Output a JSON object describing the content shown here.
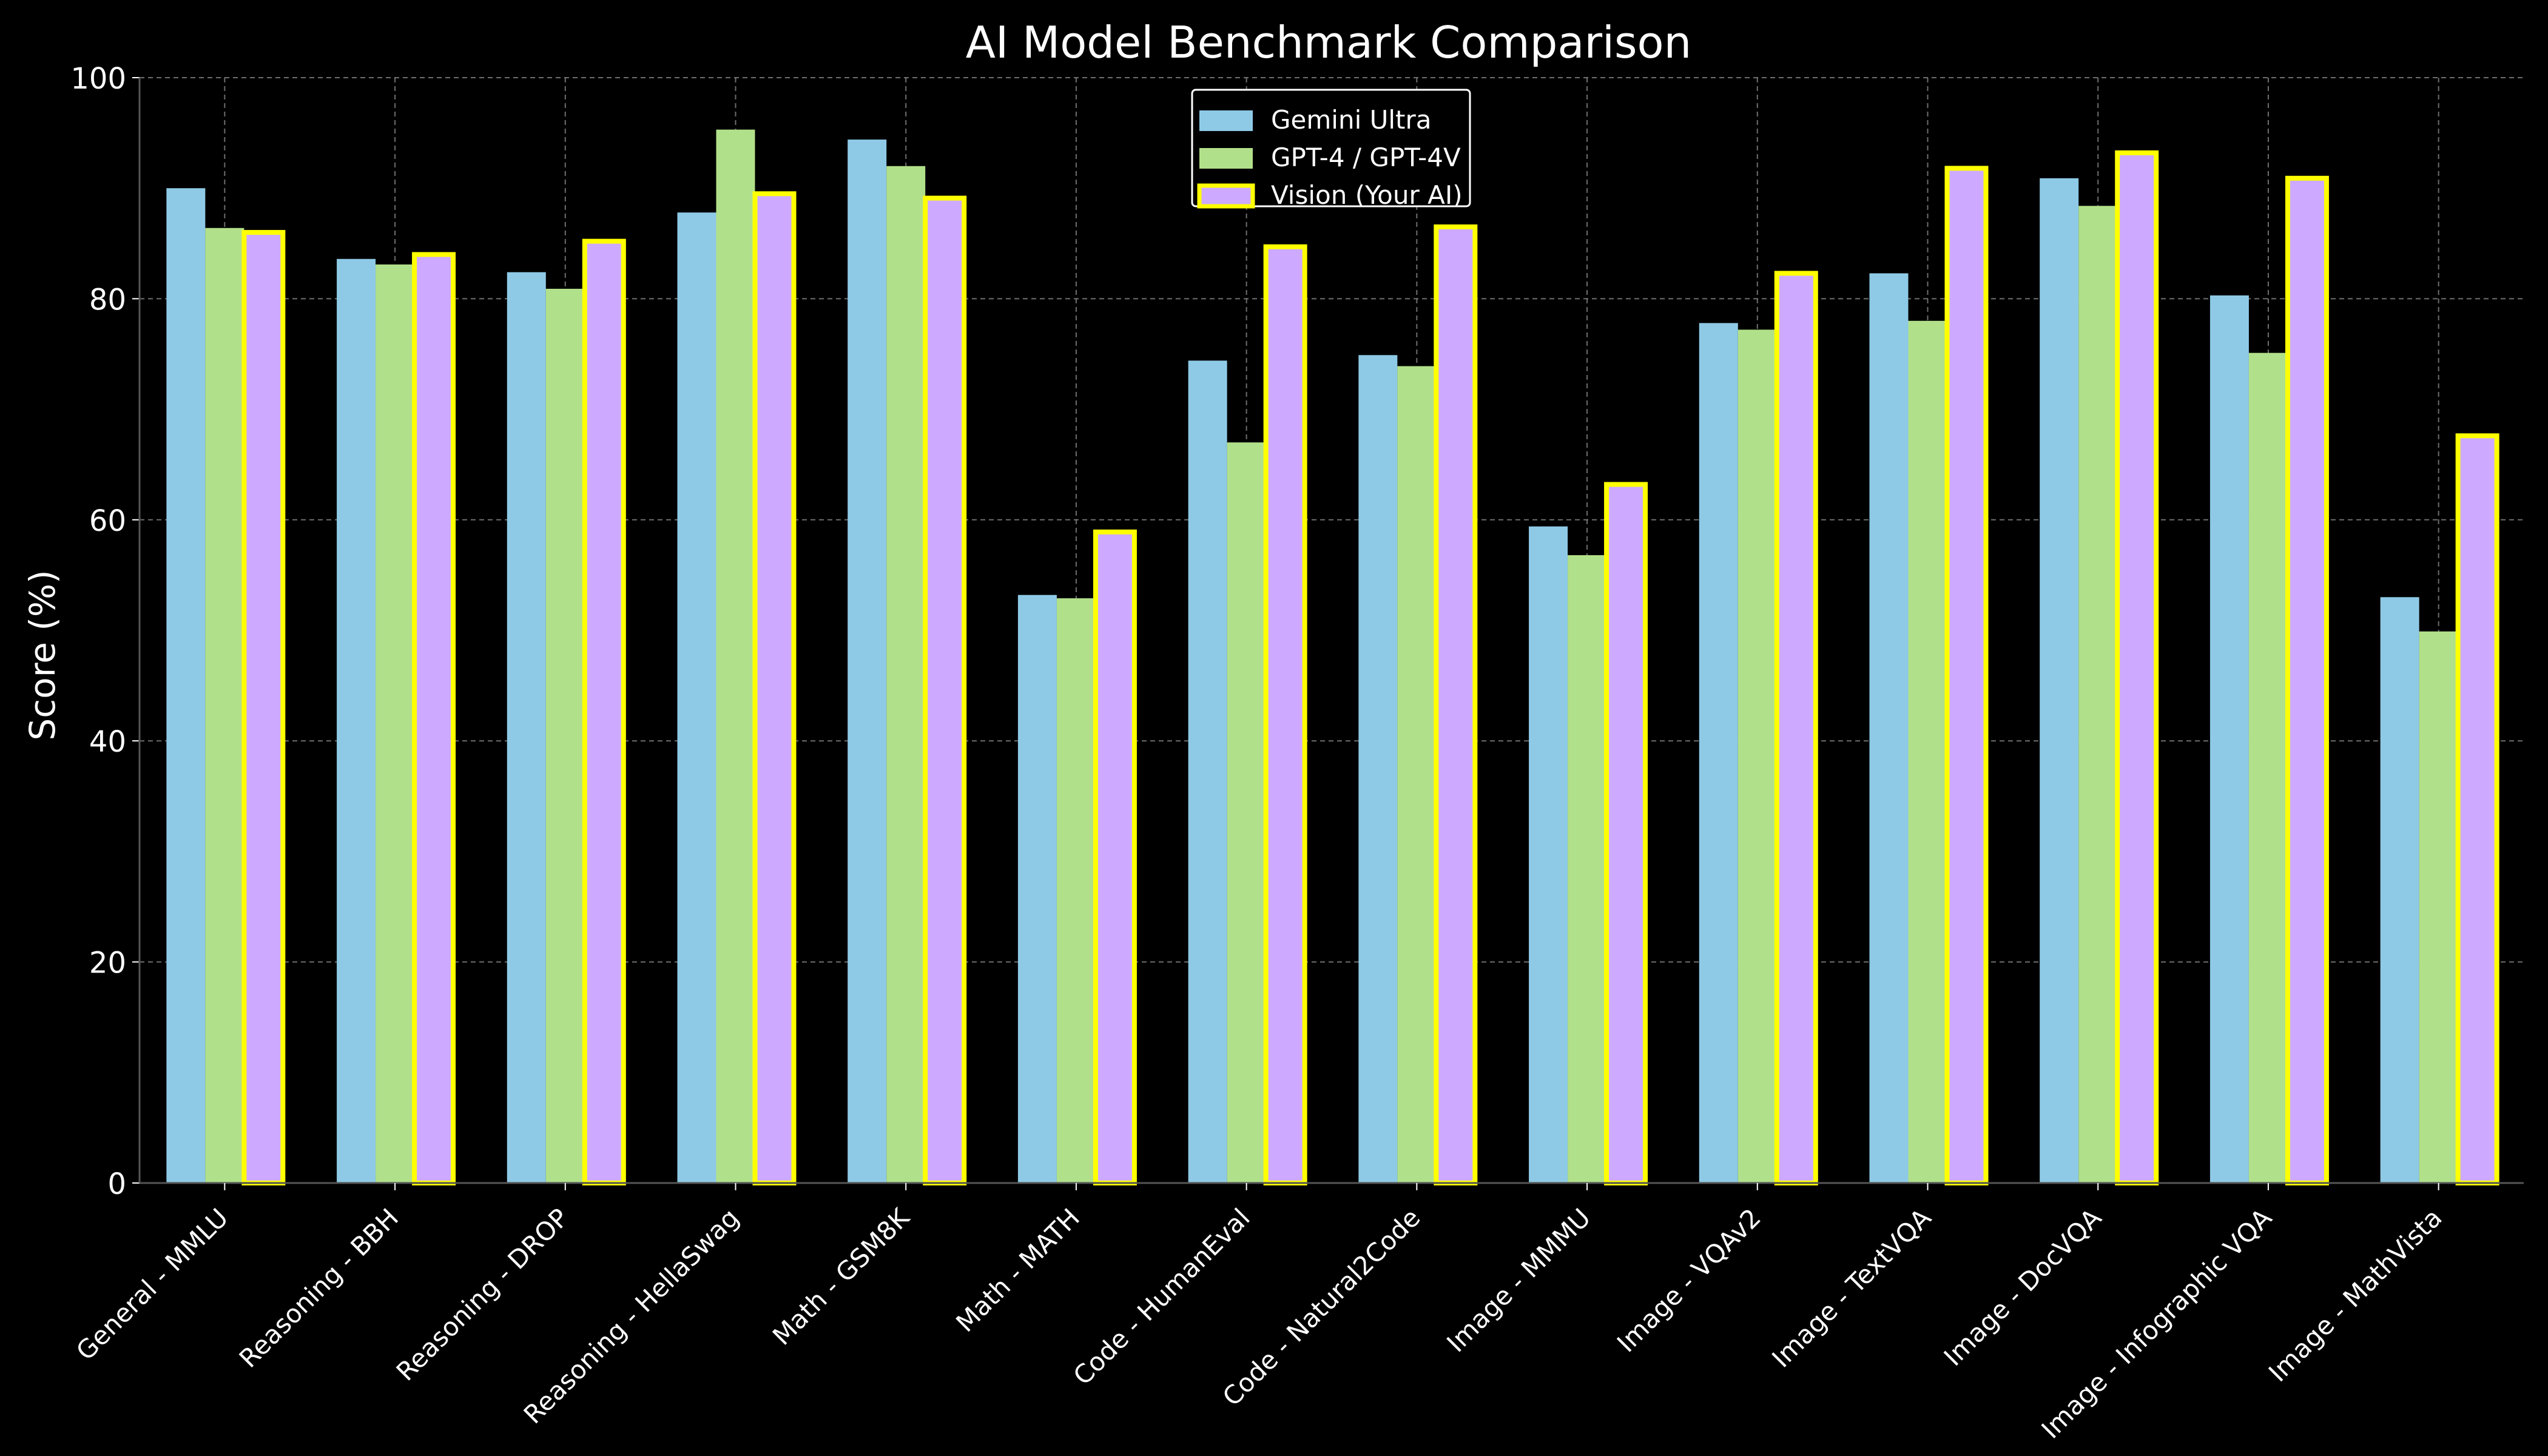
{
  "chart_data": {
    "type": "bar",
    "title": "AI Model Benchmark Comparison",
    "xlabel": "",
    "ylabel": "Score (%)",
    "ylim": [
      0,
      100
    ],
    "yticks": [
      0,
      20,
      40,
      60,
      80,
      100
    ],
    "grid": true,
    "legend_position": "top-center",
    "categories": [
      "General - MMLU",
      "Reasoning - BBH",
      "Reasoning - DROP",
      "Reasoning - HellaSwag",
      "Math - GSM8K",
      "Math - MATH",
      "Code - HumanEval",
      "Code - Natural2Code",
      "Image - MMMU",
      "Image - VQAv2",
      "Image - TextVQA",
      "Image - DocVQA",
      "Image - Infographic VQA",
      "Image - MathVista"
    ],
    "series": [
      {
        "name": "Gemini Ultra",
        "color": "#8ecae6",
        "edge_color": "",
        "values": [
          90.0,
          83.6,
          82.4,
          87.8,
          94.4,
          53.2,
          74.4,
          74.9,
          59.4,
          77.8,
          82.3,
          90.9,
          80.3,
          53.0
        ]
      },
      {
        "name": "GPT-4 / GPT-4V",
        "color": "#b1e08a",
        "edge_color": "",
        "values": [
          86.4,
          83.1,
          80.9,
          95.3,
          92.0,
          52.9,
          67.0,
          73.9,
          56.8,
          77.2,
          78.0,
          88.4,
          75.1,
          49.9
        ]
      },
      {
        "name": "Vision (Your AI)",
        "color": "#cdaaff",
        "edge_color": "#ffff00",
        "values": [
          86.0,
          84.0,
          85.2,
          89.5,
          89.1,
          58.9,
          84.7,
          86.5,
          63.2,
          82.3,
          91.8,
          93.2,
          90.9,
          67.6
        ]
      }
    ],
    "colors": {
      "background": "#000000",
      "text": "#ffffff",
      "grid": "#8a8a8a",
      "axis": "#555555"
    }
  }
}
